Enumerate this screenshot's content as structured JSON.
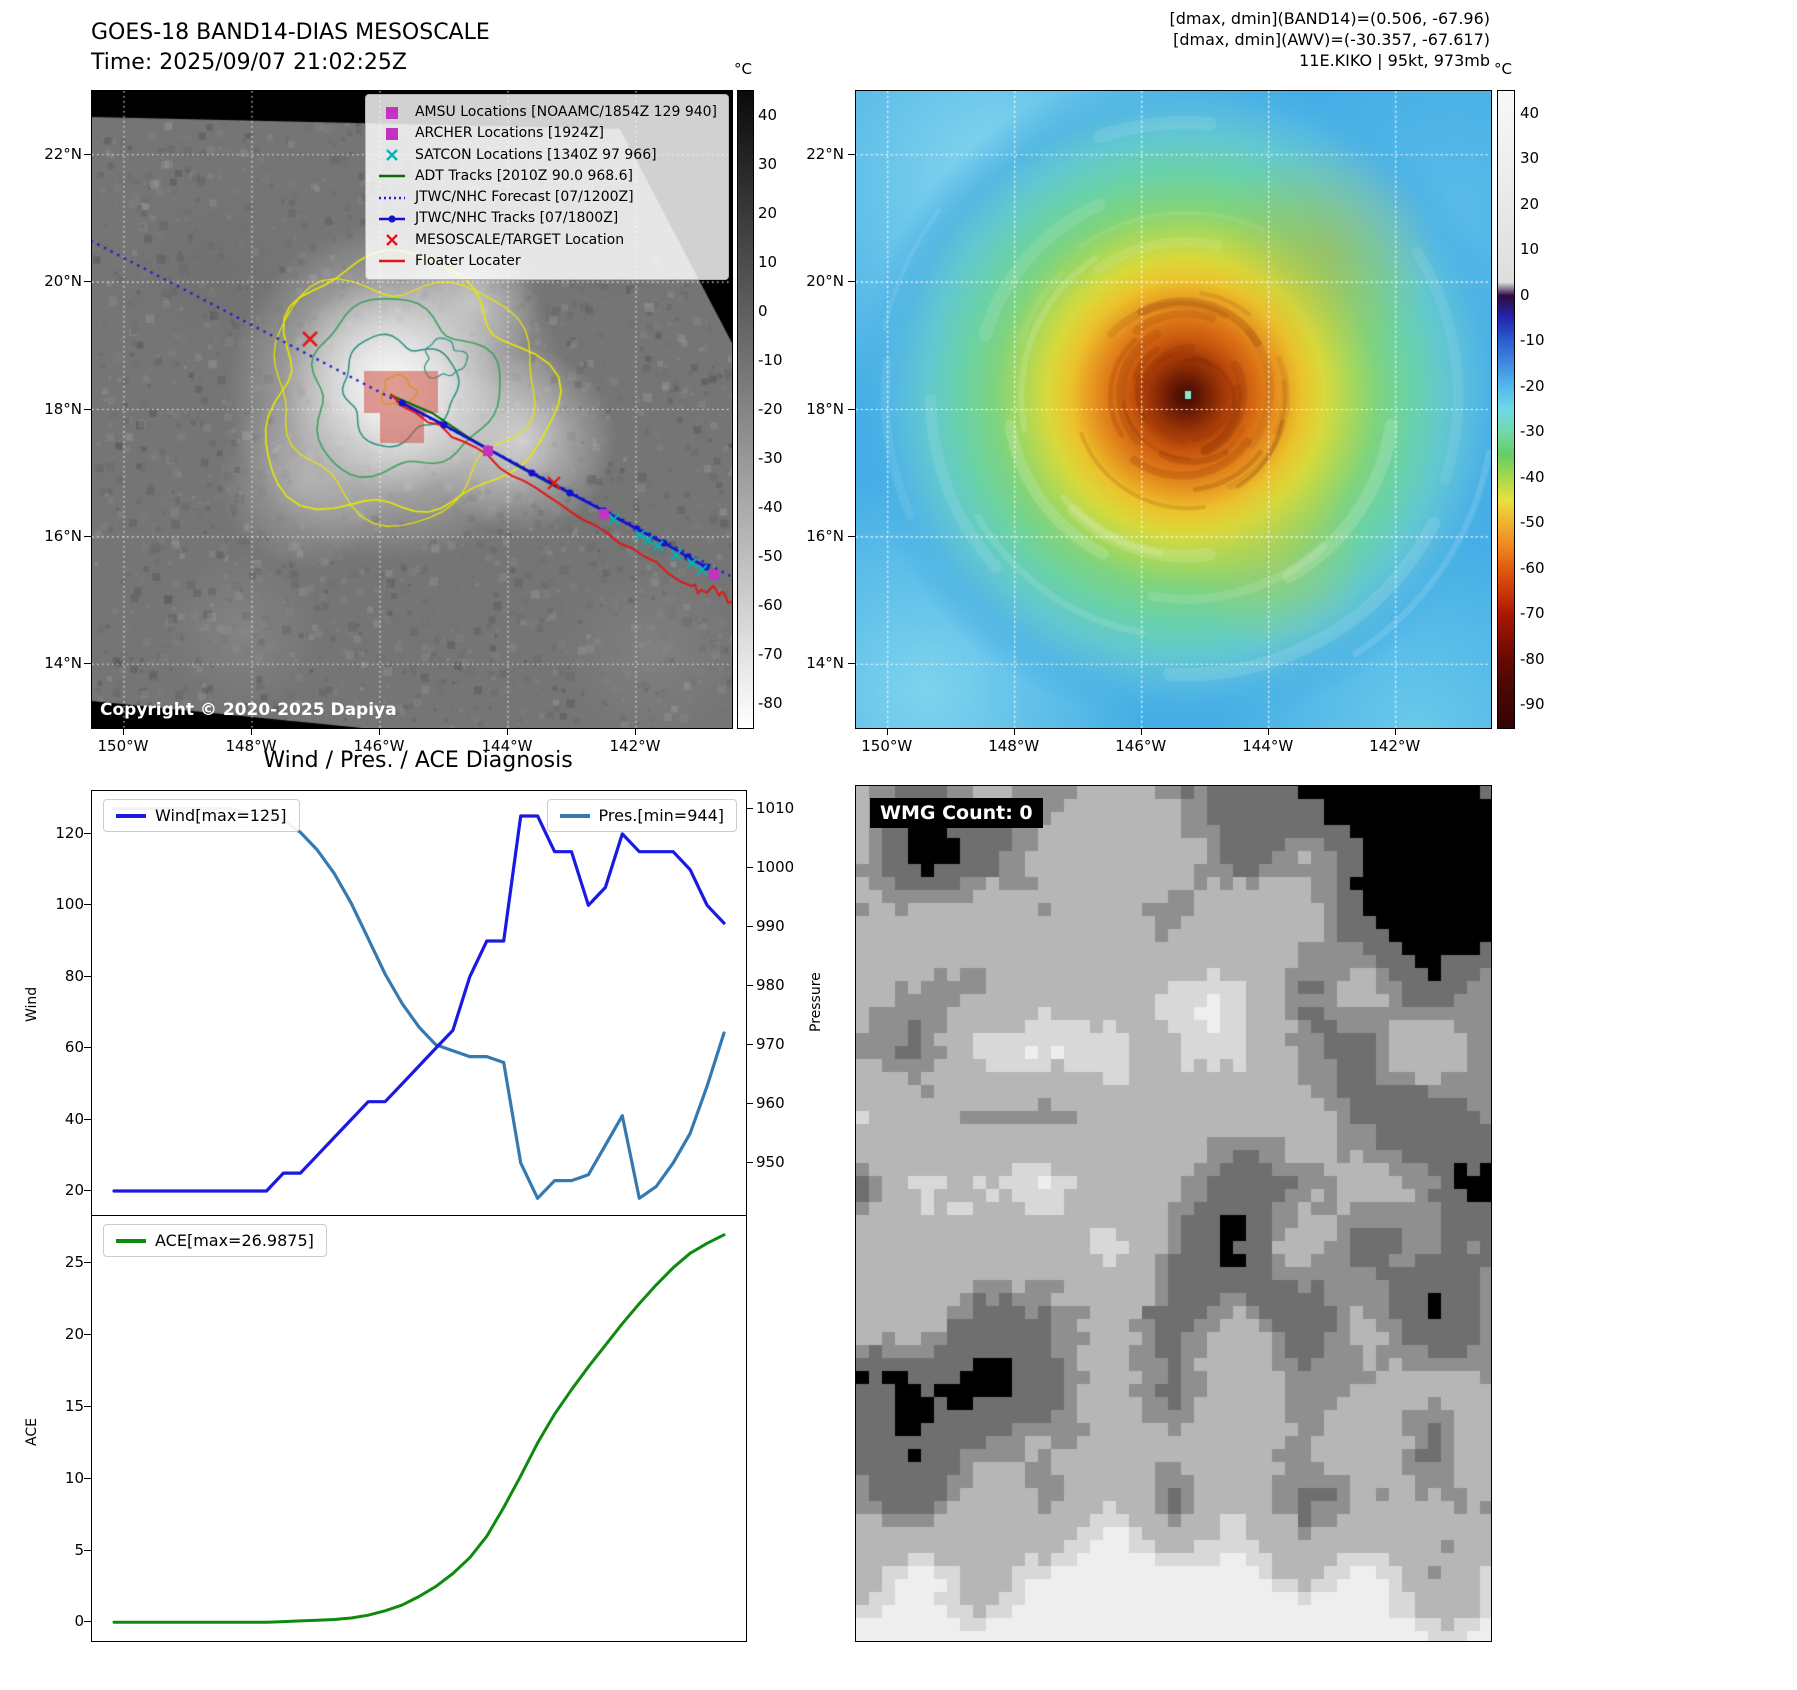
{
  "band14": {
    "title": "GOES-18 BAND14-DIAS MESOSCALE",
    "subtitle": "Time: 2025/09/07 21:02:25Z",
    "copyright": "Copyright © 2020-2025 Dapiya",
    "lat_ticks": [
      "22°N",
      "20°N",
      "18°N",
      "16°N",
      "14°N"
    ],
    "lon_ticks": [
      "150°W",
      "148°W",
      "146°W",
      "144°W",
      "142°W"
    ],
    "colorbar": {
      "unit": "°C",
      "ticks": [
        40,
        30,
        20,
        10,
        0,
        -10,
        -20,
        -30,
        -40,
        -50,
        -60,
        -70,
        -80
      ],
      "range": [
        45,
        -85
      ],
      "stops": [
        [
          45,
          "#0a0a0a"
        ],
        [
          -85,
          "#ffffff"
        ]
      ]
    },
    "legend": [
      {
        "label": "AMSU Locations [NOAAMC/1854Z 129 940]",
        "marker": "square",
        "color": "#c233c2"
      },
      {
        "label": "ARCHER Locations [1924Z]",
        "marker": "square",
        "color": "#c233c2"
      },
      {
        "label": "SATCON Locations [1340Z 97 966]",
        "marker": "x",
        "color": "#00b5b5"
      },
      {
        "label": "ADT Tracks [2010Z 90.0 968.6]",
        "marker": "line",
        "color": "#0a6a0a"
      },
      {
        "label": "JTWC/NHC Forecast [07/1200Z]",
        "marker": "dotted",
        "color": "#2020cc"
      },
      {
        "label": "JTWC/NHC Tracks [07/1800Z]",
        "marker": "line-dot",
        "color": "#1212cc"
      },
      {
        "label": "MESOSCALE/TARGET Location",
        "marker": "x",
        "color": "#e01818"
      },
      {
        "label": "Floater Locater",
        "marker": "line",
        "color": "#e01818"
      }
    ]
  },
  "awv": {
    "header_lines": [
      "[dmax, dmin](BAND14)=(0.506, -67.96)",
      "[dmax, dmin](AWV)=(-30.357, -67.617)",
      "11E.KIKO | 95kt, 973mb"
    ],
    "storm_id": "11E.KIKO",
    "intensity": "95kt",
    "pressure": "973mb",
    "lat_ticks": [
      "22°N",
      "20°N",
      "18°N",
      "16°N",
      "14°N"
    ],
    "lon_ticks": [
      "150°W",
      "148°W",
      "146°W",
      "144°W",
      "142°W"
    ],
    "colorbar": {
      "unit": "°C",
      "ticks": [
        40,
        30,
        20,
        10,
        0,
        -10,
        -20,
        -30,
        -40,
        -50,
        -60,
        -70,
        -80,
        -90
      ],
      "range": [
        45,
        -95
      ],
      "stops": [
        [
          45,
          "#f8f8f8"
        ],
        [
          3,
          "#dedede"
        ],
        [
          0,
          "#2e0b42"
        ],
        [
          -5,
          "#2525b0"
        ],
        [
          -10,
          "#2a5fd0"
        ],
        [
          -15,
          "#3f8ce0"
        ],
        [
          -20,
          "#54b8ea"
        ],
        [
          -25,
          "#6fd9e8"
        ],
        [
          -30,
          "#72d9a8"
        ],
        [
          -35,
          "#66cc66"
        ],
        [
          -40,
          "#a8d84a"
        ],
        [
          -45,
          "#e8e040"
        ],
        [
          -50,
          "#f0b030"
        ],
        [
          -55,
          "#ee8820"
        ],
        [
          -60,
          "#e05a10"
        ],
        [
          -65,
          "#cc3808"
        ],
        [
          -70,
          "#aa1804"
        ],
        [
          -75,
          "#881004"
        ],
        [
          -80,
          "#660a03"
        ],
        [
          -85,
          "#500805"
        ],
        [
          -95,
          "#320403"
        ]
      ]
    }
  },
  "diagnosis": {
    "title": "Wind / Pres. / ACE Diagnosis",
    "chart_data": [
      {
        "type": "line",
        "subplot": "wind_pressure",
        "x": [
          0,
          1,
          2,
          3,
          4,
          5,
          6,
          7,
          8,
          9,
          10,
          11,
          12,
          13,
          14,
          15,
          16,
          17,
          18,
          19,
          20,
          21,
          22,
          23,
          24,
          25,
          26,
          27,
          28,
          29,
          30,
          31,
          32,
          33,
          34,
          35,
          36
        ],
        "series": [
          {
            "name": "Wind[max=125]",
            "axis": "left",
            "color": "#1a1ae0",
            "values": [
              20,
              20,
              20,
              20,
              20,
              20,
              20,
              20,
              20,
              20,
              25,
              25,
              30,
              35,
              40,
              45,
              45,
              50,
              55,
              60,
              65,
              80,
              90,
              90,
              125,
              125,
              115,
              115,
              100,
              105,
              120,
              115,
              115,
              115,
              110,
              100,
              95
            ]
          },
          {
            "name": "Pres.[min=944]",
            "axis": "right",
            "color": "#3579b1",
            "values": [
              1010,
              1010,
              1010,
              1010,
              1010,
              1010,
              1010,
              1010,
              1009,
              1009,
              1008,
              1006,
              1003,
              999,
              994,
              988,
              982,
              977,
              973,
              970,
              969,
              968,
              968,
              967,
              950,
              944,
              947,
              947,
              948,
              953,
              958,
              944,
              946,
              950,
              955,
              963,
              972
            ]
          }
        ],
        "ylabel_left": "Wind",
        "ylabel_right": "Pressure",
        "yticks_left": [
          20,
          40,
          60,
          80,
          100,
          120
        ],
        "yticks_right": [
          950,
          960,
          970,
          980,
          990,
          1000,
          1010
        ],
        "ylim_left": [
          13,
          132
        ],
        "ylim_right": [
          941,
          1013
        ],
        "wind_max": 125,
        "pressure_min": 944,
        "legend_position": [
          "upper left",
          "upper right"
        ],
        "grid": false
      },
      {
        "type": "line",
        "subplot": "ace",
        "x": [
          0,
          1,
          2,
          3,
          4,
          5,
          6,
          7,
          8,
          9,
          10,
          11,
          12,
          13,
          14,
          15,
          16,
          17,
          18,
          19,
          20,
          21,
          22,
          23,
          24,
          25,
          26,
          27,
          28,
          29,
          30,
          31,
          32,
          33,
          34,
          35,
          36
        ],
        "series": [
          {
            "name": "ACE[max=26.9875]",
            "axis": "left",
            "color": "#0e8a0e",
            "values": [
              0,
              0,
              0,
              0,
              0,
              0,
              0,
              0,
              0,
              0,
              0.05,
              0.1,
              0.15,
              0.2,
              0.3,
              0.5,
              0.8,
              1.2,
              1.8,
              2.5,
              3.4,
              4.5,
              6,
              8,
              10.2,
              12.5,
              14.5,
              16.2,
              17.8,
              19.3,
              20.8,
              22.2,
              23.5,
              24.7,
              25.7,
              26.4,
              26.9875
            ]
          }
        ],
        "ylabel_left": "ACE",
        "yticks_left": [
          0,
          5,
          10,
          15,
          20,
          25
        ],
        "ylim_left": [
          -1.3,
          28.3
        ],
        "ace_max": 26.9875,
        "legend_position": [
          "upper left"
        ],
        "grid": false
      }
    ]
  },
  "wmg": {
    "label": "WMG Count: 0"
  }
}
